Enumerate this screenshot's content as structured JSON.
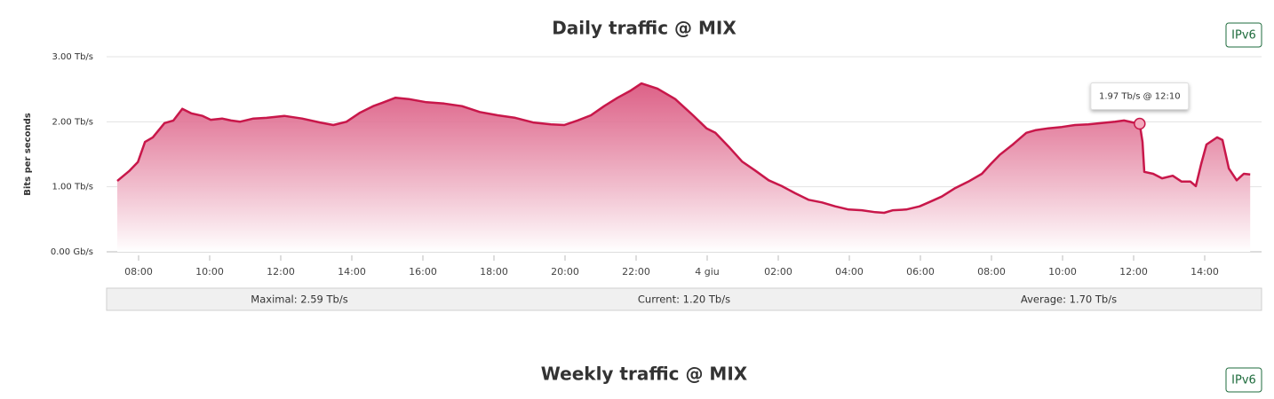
{
  "chart_data": {
    "type": "area",
    "title": "Daily traffic @ MIX",
    "y_label": "Bits per seconds",
    "color": "#c8174a",
    "fill_color": "#d9507a",
    "grid": true,
    "xlim": [
      7.1,
      39.6
    ],
    "ylim": [
      0,
      3
    ],
    "yticks": [
      {
        "value": 0,
        "label": "0.00 Gb/s"
      },
      {
        "value": 1,
        "label": "1.00 Tb/s"
      },
      {
        "value": 2,
        "label": "2.00 Tb/s"
      },
      {
        "value": 3,
        "label": "3.00 Tb/s"
      }
    ],
    "xticks": [
      {
        "value": 8,
        "label": "08:00"
      },
      {
        "value": 10,
        "label": "10:00"
      },
      {
        "value": 12,
        "label": "12:00"
      },
      {
        "value": 14,
        "label": "14:00"
      },
      {
        "value": 16,
        "label": "16:00"
      },
      {
        "value": 18,
        "label": "18:00"
      },
      {
        "value": 20,
        "label": "20:00"
      },
      {
        "value": 22,
        "label": "22:00"
      },
      {
        "value": 24,
        "label": "4 giu"
      },
      {
        "value": 26,
        "label": "02:00"
      },
      {
        "value": 28,
        "label": "04:00"
      },
      {
        "value": 30,
        "label": "06:00"
      },
      {
        "value": 32,
        "label": "08:00"
      },
      {
        "value": 34,
        "label": "10:00"
      },
      {
        "value": 36,
        "label": "12:00"
      },
      {
        "value": 38,
        "label": "14:00"
      }
    ],
    "x": [
      7.4,
      7.73,
      7.98,
      8.18,
      8.4,
      8.73,
      8.98,
      9.23,
      9.48,
      9.8,
      10.03,
      10.35,
      10.6,
      10.85,
      11.23,
      11.6,
      12.1,
      12.6,
      13.1,
      13.48,
      13.85,
      14.23,
      14.6,
      14.85,
      15.23,
      15.6,
      16.1,
      16.6,
      17.1,
      17.6,
      18.1,
      18.6,
      19.1,
      19.6,
      19.98,
      20.35,
      20.73,
      21.1,
      21.48,
      21.85,
      22.15,
      22.6,
      23.1,
      23.6,
      23.98,
      24.23,
      24.6,
      24.98,
      25.35,
      25.73,
      26.1,
      26.48,
      26.85,
      27.23,
      27.6,
      27.98,
      28.35,
      28.73,
      28.98,
      29.23,
      29.6,
      29.98,
      30.23,
      30.6,
      30.98,
      31.35,
      31.73,
      31.98,
      32.23,
      32.6,
      32.98,
      33.23,
      33.6,
      33.98,
      34.35,
      34.73,
      35.1,
      35.48,
      35.73,
      35.98,
      36.17,
      36.25,
      36.3,
      36.55,
      36.8,
      37.1,
      37.35,
      37.6,
      37.75,
      37.9,
      38.05,
      38.35,
      38.5,
      38.68,
      38.9,
      39.1,
      39.28
    ],
    "values": [
      1.09,
      1.24,
      1.38,
      1.69,
      1.76,
      1.98,
      2.02,
      2.2,
      2.13,
      2.09,
      2.03,
      2.05,
      2.02,
      2.0,
      2.05,
      2.06,
      2.09,
      2.05,
      1.99,
      1.95,
      2.0,
      2.14,
      2.24,
      2.29,
      2.37,
      2.35,
      2.3,
      2.28,
      2.24,
      2.15,
      2.1,
      2.06,
      1.99,
      1.96,
      1.95,
      2.02,
      2.1,
      2.24,
      2.37,
      2.48,
      2.59,
      2.51,
      2.35,
      2.1,
      1.9,
      1.83,
      1.62,
      1.39,
      1.25,
      1.1,
      1.01,
      0.9,
      0.8,
      0.76,
      0.7,
      0.65,
      0.64,
      0.61,
      0.6,
      0.64,
      0.65,
      0.7,
      0.76,
      0.85,
      0.98,
      1.08,
      1.2,
      1.35,
      1.49,
      1.65,
      1.83,
      1.87,
      1.9,
      1.92,
      1.95,
      1.96,
      1.98,
      2.0,
      2.02,
      1.99,
      1.97,
      1.69,
      1.23,
      1.2,
      1.13,
      1.17,
      1.08,
      1.08,
      1.01,
      1.35,
      1.65,
      1.76,
      1.72,
      1.28,
      1.1,
      1.2,
      1.19
    ],
    "tooltip": {
      "text": "1.97 Tb/s @ 12:10",
      "x": 36.17,
      "y": 1.97
    },
    "stats": [
      "Maximal: 2.59 Tb/s",
      "Current: 1.20 Tb/s",
      "Average: 1.70 Tb/s"
    ],
    "button": "IPv6"
  },
  "next_section": {
    "title": "Weekly traffic @ MIX",
    "button": "IPv6"
  }
}
